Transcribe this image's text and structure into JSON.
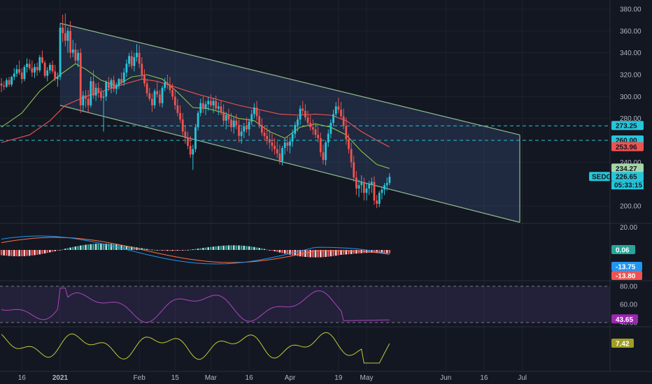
{
  "chart_data": {
    "type": "candlestick",
    "symbol": "SEDG",
    "price_axis": {
      "ticks": [
        "380.00",
        "360.00",
        "340.00",
        "320.00",
        "300.00",
        "280.00",
        "240.00",
        "200.00"
      ],
      "tick_values": [
        380,
        360,
        340,
        320,
        300,
        280,
        240,
        200
      ],
      "range": [
        180,
        390
      ]
    },
    "x_axis": {
      "labels": [
        "16",
        "2021",
        "Feb",
        "15",
        "Mar",
        "16",
        "Apr",
        "19",
        "May",
        "Jun",
        "16",
        "Jul"
      ],
      "label_days": [
        -15,
        0,
        31,
        45,
        59,
        74,
        90,
        109,
        120,
        151,
        166,
        181
      ]
    },
    "horizontal_lines": [
      273.25,
      260.0
    ],
    "channel": {
      "upper": [
        [
          0,
          367
        ],
        [
          180,
          265
        ]
      ],
      "lower": [
        [
          0,
          292
        ],
        [
          180,
          185
        ]
      ]
    },
    "price_badges": [
      {
        "label": "273.25",
        "value": 273.25,
        "color": "#26c6da"
      },
      {
        "label": "260.00",
        "value": 260.0,
        "color": "#26c6da"
      },
      {
        "label": "253.96",
        "value": 253.96,
        "color": "#ef5350"
      },
      {
        "label": "234.27",
        "value": 234.27,
        "color": "#a5d6a7"
      },
      {
        "label": "226.65",
        "value": 226.65,
        "color": "#26c6da"
      }
    ],
    "last_price": "226.65",
    "countdown": "05:33:15",
    "candles": [
      [
        -23,
        312,
        317,
        304,
        310
      ],
      [
        -22,
        310,
        314,
        306,
        309
      ],
      [
        -21,
        309,
        317,
        308,
        315
      ],
      [
        -20,
        315,
        318,
        309,
        311
      ],
      [
        -19,
        311,
        319,
        309,
        318
      ],
      [
        -18,
        318,
        326,
        315,
        321
      ],
      [
        -17,
        321,
        329,
        318,
        325
      ],
      [
        -16,
        325,
        333,
        320,
        322
      ],
      [
        -15,
        322,
        326,
        312,
        316
      ],
      [
        -14,
        316,
        329,
        314,
        327
      ],
      [
        -13,
        327,
        335,
        322,
        330
      ],
      [
        -12,
        330,
        334,
        324,
        326
      ],
      [
        -11,
        326,
        333,
        318,
        322
      ],
      [
        -10,
        322,
        330,
        317,
        327
      ],
      [
        -9,
        327,
        331,
        319,
        324
      ],
      [
        -8,
        324,
        338,
        322,
        336
      ],
      [
        -7,
        336,
        342,
        330,
        331
      ],
      [
        -6,
        331,
        333,
        317,
        319
      ],
      [
        -5,
        319,
        327,
        314,
        324
      ],
      [
        -4,
        324,
        331,
        321,
        329
      ],
      [
        -3,
        329,
        333,
        321,
        323
      ],
      [
        -2,
        323,
        329,
        314,
        316
      ],
      [
        -1,
        316,
        322,
        309,
        318
      ],
      [
        0,
        318,
        367,
        315,
        363
      ],
      [
        1,
        363,
        375,
        350,
        358
      ],
      [
        2,
        358,
        376,
        346,
        351
      ],
      [
        3,
        351,
        363,
        340,
        360
      ],
      [
        4,
        360,
        369,
        335,
        340
      ],
      [
        5,
        340,
        352,
        336,
        343
      ],
      [
        6,
        343,
        349,
        330,
        333
      ],
      [
        7,
        333,
        343,
        327,
        340
      ],
      [
        8,
        340,
        344,
        285,
        292
      ],
      [
        9,
        292,
        305,
        286,
        301
      ],
      [
        10,
        301,
        306,
        290,
        298
      ],
      [
        11,
        298,
        306,
        285,
        292
      ],
      [
        12,
        292,
        318,
        290,
        314
      ],
      [
        13,
        314,
        324,
        298,
        301
      ],
      [
        14,
        301,
        312,
        296,
        308
      ],
      [
        15,
        308,
        313,
        299,
        304
      ],
      [
        16,
        304,
        308,
        296,
        299
      ],
      [
        17,
        299,
        305,
        268,
        300
      ],
      [
        18,
        300,
        315,
        296,
        313
      ],
      [
        19,
        313,
        318,
        305,
        308
      ],
      [
        20,
        308,
        317,
        303,
        315
      ],
      [
        21,
        315,
        319,
        304,
        307
      ],
      [
        22,
        307,
        313,
        302,
        310
      ],
      [
        23,
        310,
        317,
        307,
        316
      ],
      [
        24,
        316,
        322,
        311,
        313
      ],
      [
        25,
        313,
        326,
        310,
        322
      ],
      [
        26,
        322,
        334,
        318,
        330
      ],
      [
        27,
        330,
        340,
        327,
        337
      ],
      [
        28,
        337,
        342,
        325,
        328
      ],
      [
        29,
        328,
        340,
        323,
        336
      ],
      [
        30,
        336,
        348,
        332,
        340
      ],
      [
        31,
        340,
        347,
        326,
        330
      ],
      [
        32,
        330,
        336,
        316,
        320
      ],
      [
        33,
        320,
        325,
        309,
        312
      ],
      [
        34,
        312,
        316,
        300,
        303
      ],
      [
        35,
        303,
        308,
        296,
        298
      ],
      [
        36,
        298,
        303,
        286,
        292
      ],
      [
        37,
        292,
        307,
        289,
        305
      ],
      [
        38,
        305,
        314,
        299,
        302
      ],
      [
        39,
        302,
        306,
        291,
        294
      ],
      [
        40,
        294,
        310,
        290,
        308
      ],
      [
        41,
        308,
        317,
        305,
        313
      ],
      [
        42,
        313,
        320,
        307,
        311
      ],
      [
        43,
        311,
        318,
        303,
        306
      ],
      [
        44,
        306,
        312,
        297,
        300
      ],
      [
        45,
        300,
        306,
        288,
        292
      ],
      [
        46,
        292,
        298,
        282,
        285
      ],
      [
        47,
        285,
        292,
        276,
        279
      ],
      [
        48,
        279,
        285,
        264,
        268
      ],
      [
        49,
        268,
        274,
        257,
        262
      ],
      [
        50,
        262,
        268,
        252,
        255
      ],
      [
        51,
        255,
        264,
        244,
        247
      ],
      [
        52,
        247,
        256,
        233,
        252
      ],
      [
        53,
        252,
        275,
        249,
        272
      ],
      [
        54,
        272,
        287,
        269,
        285
      ],
      [
        55,
        285,
        298,
        282,
        294
      ],
      [
        56,
        294,
        300,
        285,
        289
      ],
      [
        57,
        289,
        296,
        283,
        293
      ],
      [
        58,
        293,
        300,
        287,
        296
      ],
      [
        59,
        296,
        302,
        290,
        292
      ],
      [
        60,
        292,
        299,
        285,
        296
      ],
      [
        61,
        296,
        301,
        287,
        289
      ],
      [
        62,
        289,
        295,
        283,
        291
      ],
      [
        63,
        291,
        296,
        283,
        286
      ],
      [
        64,
        286,
        293,
        274,
        278
      ],
      [
        65,
        278,
        286,
        270,
        283
      ],
      [
        66,
        283,
        289,
        275,
        279
      ],
      [
        67,
        279,
        285,
        268,
        272
      ],
      [
        68,
        272,
        281,
        266,
        278
      ],
      [
        69,
        278,
        284,
        270,
        274
      ],
      [
        70,
        274,
        279,
        258,
        264
      ],
      [
        71,
        264,
        272,
        257,
        268
      ],
      [
        72,
        268,
        276,
        262,
        273
      ],
      [
        73,
        273,
        281,
        267,
        270
      ],
      [
        74,
        270,
        280,
        264,
        277
      ],
      [
        75,
        277,
        288,
        274,
        284
      ],
      [
        76,
        284,
        294,
        280,
        290
      ],
      [
        77,
        290,
        296,
        278,
        282
      ],
      [
        78,
        282,
        287,
        271,
        274
      ],
      [
        79,
        274,
        280,
        264,
        267
      ],
      [
        80,
        267,
        273,
        260,
        264
      ],
      [
        81,
        264,
        272,
        256,
        261
      ],
      [
        82,
        261,
        270,
        252,
        258
      ],
      [
        83,
        258,
        266,
        250,
        255
      ],
      [
        84,
        255,
        262,
        247,
        252
      ],
      [
        85,
        252,
        259,
        244,
        248
      ],
      [
        86,
        248,
        256,
        238,
        241
      ],
      [
        87,
        241,
        255,
        237,
        253
      ],
      [
        88,
        253,
        262,
        247,
        258
      ],
      [
        89,
        258,
        264,
        250,
        255
      ],
      [
        90,
        255,
        263,
        248,
        259
      ],
      [
        91,
        259,
        270,
        254,
        266
      ],
      [
        92,
        266,
        277,
        262,
        274
      ],
      [
        93,
        274,
        282,
        268,
        279
      ],
      [
        94,
        279,
        292,
        274,
        289
      ],
      [
        95,
        289,
        296,
        283,
        287
      ],
      [
        96,
        287,
        293,
        278,
        281
      ],
      [
        97,
        281,
        287,
        273,
        276
      ],
      [
        98,
        276,
        283,
        269,
        272
      ],
      [
        99,
        272,
        279,
        265,
        270
      ],
      [
        100,
        270,
        276,
        262,
        265
      ],
      [
        101,
        265,
        272,
        258,
        262
      ],
      [
        102,
        262,
        267,
        245,
        249
      ],
      [
        103,
        249,
        256,
        238,
        242
      ],
      [
        104,
        242,
        260,
        237,
        258
      ],
      [
        105,
        258,
        270,
        254,
        266
      ],
      [
        106,
        266,
        279,
        262,
        276
      ],
      [
        107,
        276,
        288,
        273,
        284
      ],
      [
        108,
        284,
        295,
        281,
        291
      ],
      [
        109,
        291,
        299,
        285,
        288
      ],
      [
        110,
        288,
        295,
        279,
        282
      ],
      [
        111,
        282,
        289,
        270,
        273
      ],
      [
        112,
        273,
        281,
        256,
        261
      ],
      [
        113,
        261,
        266,
        248,
        252
      ],
      [
        114,
        252,
        258,
        235,
        240
      ],
      [
        115,
        240,
        246,
        222,
        226
      ],
      [
        116,
        226,
        232,
        210,
        216
      ],
      [
        117,
        216,
        224,
        208,
        219
      ],
      [
        118,
        219,
        228,
        212,
        222
      ],
      [
        119,
        222,
        226,
        205,
        212
      ],
      [
        120,
        212,
        221,
        205,
        216
      ],
      [
        121,
        216,
        223,
        210,
        220
      ],
      [
        122,
        220,
        226,
        212,
        222
      ],
      [
        123,
        222,
        227,
        201,
        205
      ],
      [
        124,
        205,
        210,
        198,
        202
      ],
      [
        125,
        202,
        214,
        199,
        212
      ],
      [
        126,
        212,
        218,
        206,
        215
      ],
      [
        127,
        215,
        221,
        210,
        219
      ],
      [
        128,
        219,
        226,
        214,
        221
      ],
      [
        129,
        221,
        230,
        219,
        226.65
      ]
    ],
    "ma_green": [
      [
        -23,
        272
      ],
      [
        -15,
        285
      ],
      [
        -8,
        305
      ],
      [
        0,
        320
      ],
      [
        6,
        330
      ],
      [
        10,
        325
      ],
      [
        16,
        315
      ],
      [
        22,
        310
      ],
      [
        28,
        318
      ],
      [
        34,
        320
      ],
      [
        40,
        316
      ],
      [
        46,
        304
      ],
      [
        52,
        290
      ],
      [
        58,
        289
      ],
      [
        64,
        285
      ],
      [
        70,
        280
      ],
      [
        76,
        278
      ],
      [
        82,
        268
      ],
      [
        88,
        262
      ],
      [
        94,
        272
      ],
      [
        100,
        275
      ],
      [
        106,
        272
      ],
      [
        112,
        265
      ],
      [
        118,
        250
      ],
      [
        124,
        238
      ],
      [
        129,
        234.27
      ]
    ],
    "ma_red": [
      [
        -23,
        258
      ],
      [
        -12,
        265
      ],
      [
        -4,
        278
      ],
      [
        2,
        292
      ],
      [
        10,
        300
      ],
      [
        18,
        306
      ],
      [
        26,
        312
      ],
      [
        32,
        316
      ],
      [
        38,
        314
      ],
      [
        46,
        308
      ],
      [
        54,
        302
      ],
      [
        62,
        297
      ],
      [
        70,
        292
      ],
      [
        78,
        288
      ],
      [
        86,
        284
      ],
      [
        94,
        283
      ],
      [
        100,
        284
      ],
      [
        106,
        283
      ],
      [
        112,
        278
      ],
      [
        118,
        268
      ],
      [
        124,
        260
      ],
      [
        129,
        253.96
      ]
    ],
    "macd": {
      "label_ticks": [
        "20.00"
      ],
      "badges": [
        {
          "label": "0.06",
          "color": "#26a69a"
        },
        {
          "label": "-13.75",
          "color": "#2196f3"
        },
        {
          "label": "-13.80",
          "color": "#ef5350"
        }
      ]
    },
    "rsi": {
      "ticks": [
        "80.00",
        "60.00",
        "40.00"
      ],
      "badge": {
        "label": "43.65",
        "color": "#9c27b0"
      }
    },
    "osc": {
      "badge": {
        "label": "7.42",
        "color": "#9e9d24"
      }
    }
  }
}
